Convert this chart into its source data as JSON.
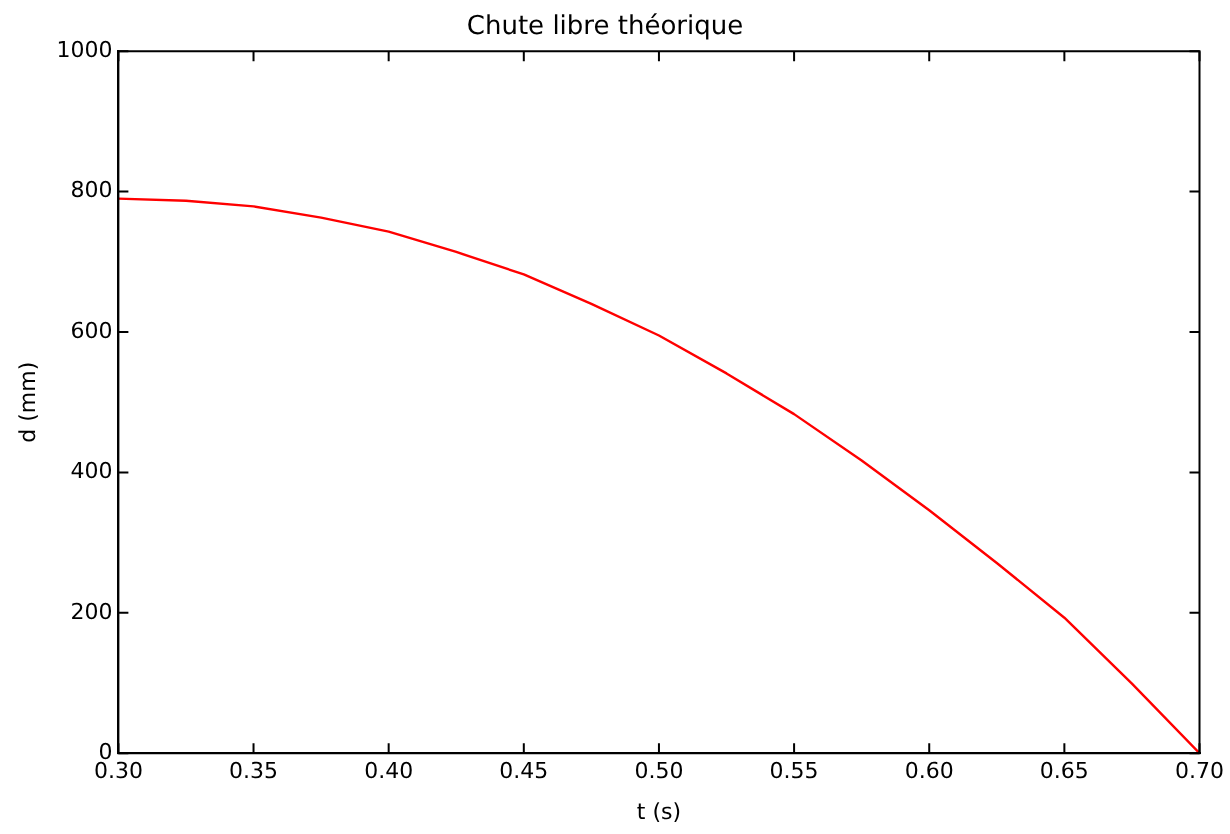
{
  "chart_data": {
    "type": "line",
    "title": "Chute libre théorique",
    "xlabel": "t (s)",
    "ylabel": "d (mm)",
    "x": [
      0.3,
      0.325,
      0.35,
      0.375,
      0.4,
      0.425,
      0.45,
      0.475,
      0.5,
      0.525,
      0.55,
      0.575,
      0.6,
      0.625,
      0.65,
      0.675,
      0.7
    ],
    "series": [
      {
        "color": "#ff0000",
        "values": [
          790,
          787,
          779,
          763,
          743,
          714,
          682,
          640,
          595,
          541,
          483,
          417,
          346,
          271,
          193,
          99,
          0
        ]
      }
    ],
    "xlim": [
      0.3,
      0.7
    ],
    "xticks": [
      {
        "value": 0.3,
        "label": "0.30"
      },
      {
        "value": 0.35,
        "label": "0.35"
      },
      {
        "value": 0.4,
        "label": "0.40"
      },
      {
        "value": 0.45,
        "label": "0.45"
      },
      {
        "value": 0.5,
        "label": "0.50"
      },
      {
        "value": 0.55,
        "label": "0.55"
      },
      {
        "value": 0.6,
        "label": "0.60"
      },
      {
        "value": 0.65,
        "label": "0.65"
      },
      {
        "value": 0.7,
        "label": "0.70"
      }
    ],
    "ylim": [
      0,
      1000
    ],
    "yticks": [
      0,
      200,
      400,
      600,
      800,
      1000
    ],
    "grid": false,
    "legend": false,
    "marker": "none",
    "line_style": "solid"
  }
}
